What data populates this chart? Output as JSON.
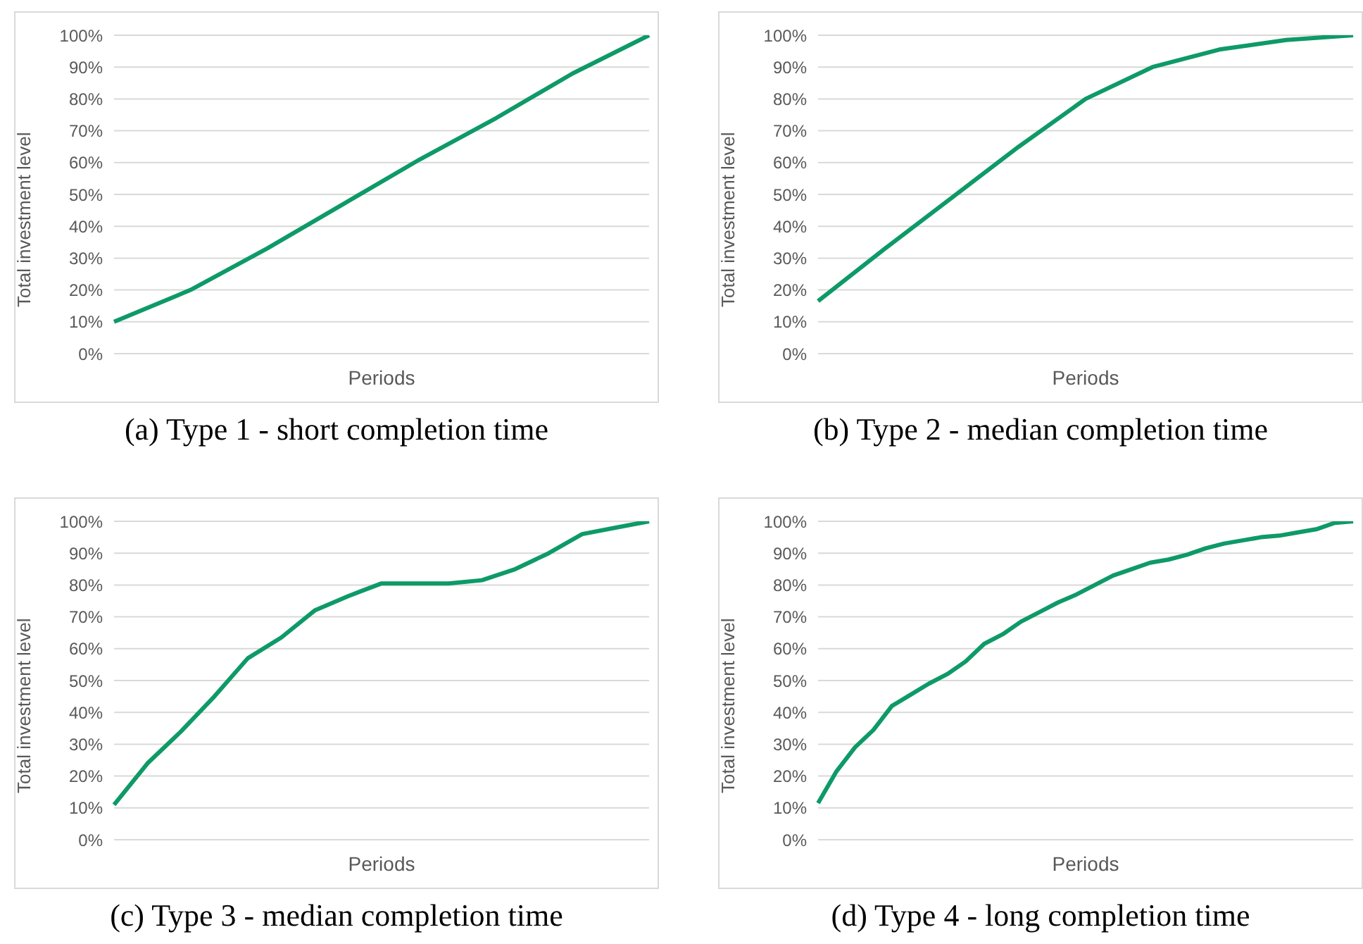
{
  "chart_data": [
    {
      "type": "line",
      "annotations": [
        "(a) Type 1 - short completion time"
      ],
      "xlabel": "Periods",
      "ylabel": "Total investment level",
      "categories": [
        null,
        null,
        null,
        null,
        null,
        null,
        null,
        null
      ],
      "values": [
        10,
        20,
        33,
        47,
        61,
        74,
        88,
        100
      ],
      "color": "#0e9a68",
      "ylim": [
        0,
        100
      ],
      "yticks": [
        {
          "value": 0,
          "label": "0%"
        },
        {
          "value": 10,
          "label": "10%"
        },
        {
          "value": 20,
          "label": "20%"
        },
        {
          "value": 30,
          "label": "30%"
        },
        {
          "value": 40,
          "label": "40%"
        },
        {
          "value": 50,
          "label": "50%"
        },
        {
          "value": 60,
          "label": "60%"
        },
        {
          "value": 70,
          "label": "70%"
        },
        {
          "value": 80,
          "label": "80%"
        },
        {
          "value": 90,
          "label": "90%"
        },
        {
          "value": 100,
          "label": "100%"
        }
      ],
      "grid": "y",
      "tick_labels": "y"
    },
    {
      "type": "line",
      "annotations": [
        "(b) Type 2 - median completion time"
      ],
      "xlabel": "Periods",
      "ylabel": "Total investment level",
      "categories": [
        null,
        null,
        null,
        null,
        null,
        null,
        null,
        null,
        null
      ],
      "values": [
        16.5,
        33,
        49,
        65,
        80,
        90,
        95.5,
        98.5,
        100
      ],
      "color": "#0e9a68",
      "ylim": [
        0,
        100
      ],
      "yticks": [
        {
          "value": 0,
          "label": "0%"
        },
        {
          "value": 10,
          "label": "10%"
        },
        {
          "value": 20,
          "label": "20%"
        },
        {
          "value": 30,
          "label": "30%"
        },
        {
          "value": 40,
          "label": "40%"
        },
        {
          "value": 50,
          "label": "50%"
        },
        {
          "value": 60,
          "label": "60%"
        },
        {
          "value": 70,
          "label": "70%"
        },
        {
          "value": 80,
          "label": "80%"
        },
        {
          "value": 90,
          "label": "90%"
        },
        {
          "value": 100,
          "label": "100%"
        }
      ],
      "grid": "y",
      "tick_labels": "y"
    },
    {
      "type": "line",
      "annotations": [
        "(c) Type 3 - median completion time"
      ],
      "xlabel": "Periods",
      "ylabel": "Total investment level",
      "categories": [
        null,
        null,
        null,
        null,
        null,
        null,
        null,
        null,
        null,
        null,
        null,
        null,
        null,
        null,
        null,
        null,
        null
      ],
      "values": [
        11,
        24,
        34,
        45,
        57,
        63.5,
        72,
        76.5,
        80.5,
        80.5,
        80.5,
        81.5,
        85,
        90,
        96,
        98,
        100
      ],
      "color": "#0e9a68",
      "ylim": [
        0,
        100
      ],
      "yticks": [
        {
          "value": 0,
          "label": "0%"
        },
        {
          "value": 10,
          "label": "10%"
        },
        {
          "value": 20,
          "label": "20%"
        },
        {
          "value": 30,
          "label": "30%"
        },
        {
          "value": 40,
          "label": "40%"
        },
        {
          "value": 50,
          "label": "50%"
        },
        {
          "value": 60,
          "label": "60%"
        },
        {
          "value": 70,
          "label": "70%"
        },
        {
          "value": 80,
          "label": "80%"
        },
        {
          "value": 90,
          "label": "90%"
        },
        {
          "value": 100,
          "label": "100%"
        }
      ],
      "grid": "y",
      "tick_labels": "y"
    },
    {
      "type": "line",
      "annotations": [
        "(d) Type 4 - long completion time"
      ],
      "xlabel": "Periods",
      "ylabel": "Total investment level",
      "categories": [
        null,
        null,
        null,
        null,
        null,
        null,
        null,
        null,
        null,
        null,
        null,
        null,
        null,
        null,
        null,
        null,
        null,
        null,
        null,
        null,
        null,
        null,
        null,
        null,
        null,
        null,
        null,
        null,
        null,
        null
      ],
      "values": [
        11.5,
        21.5,
        29,
        34.5,
        42,
        45.5,
        49,
        52,
        56,
        61.5,
        64.5,
        68.5,
        71.5,
        74.5,
        77,
        80,
        83,
        85,
        87,
        88,
        89.5,
        91.5,
        93,
        94,
        95,
        95.5,
        96.5,
        97.5,
        99.5,
        100
      ],
      "color": "#0e9a68",
      "ylim": [
        0,
        100
      ],
      "yticks": [
        {
          "value": 0,
          "label": "0%"
        },
        {
          "value": 10,
          "label": "10%"
        },
        {
          "value": 20,
          "label": "20%"
        },
        {
          "value": 30,
          "label": "30%"
        },
        {
          "value": 40,
          "label": "40%"
        },
        {
          "value": 50,
          "label": "50%"
        },
        {
          "value": 60,
          "label": "60%"
        },
        {
          "value": 70,
          "label": "70%"
        },
        {
          "value": 80,
          "label": "80%"
        },
        {
          "value": 90,
          "label": "90%"
        },
        {
          "value": 100,
          "label": "100%"
        }
      ],
      "grid": "y",
      "tick_labels": "y"
    }
  ]
}
